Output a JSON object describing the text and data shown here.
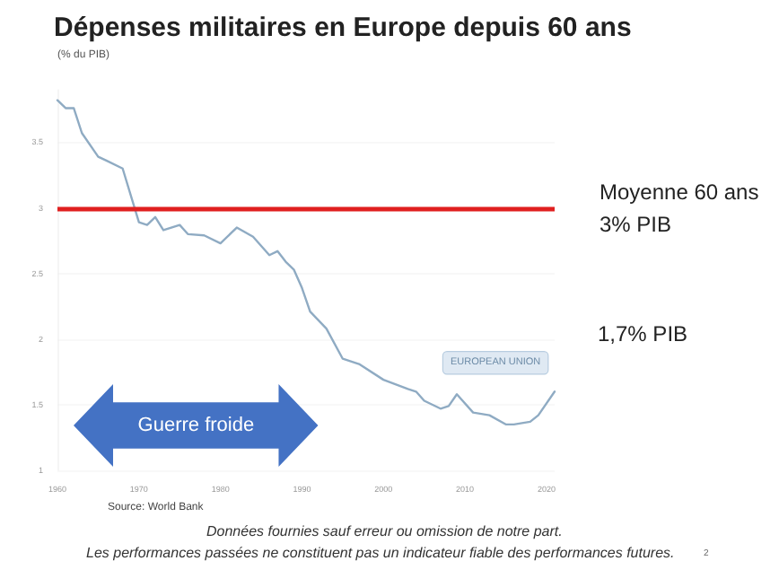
{
  "chart_data": {
    "type": "line",
    "title": "Dépenses militaires en Europe depuis 60 ans",
    "subtitle": "(% du PIB)",
    "x": [
      1960,
      1961,
      1962,
      1963,
      1965,
      1966,
      1968,
      1970,
      1971,
      1972,
      1973,
      1975,
      1976,
      1978,
      1980,
      1982,
      1984,
      1986,
      1987,
      1988,
      1989,
      1990,
      1991,
      1993,
      1995,
      1997,
      2000,
      2003,
      2004,
      2005,
      2007,
      2008,
      2009,
      2011,
      2013,
      2015,
      2016,
      2018,
      2019,
      2021
    ],
    "series": [
      {
        "name": "EUROPEAN UNION",
        "color": "#8fabc3",
        "values": [
          3.82,
          3.76,
          3.76,
          3.57,
          3.39,
          3.36,
          3.3,
          2.89,
          2.87,
          2.93,
          2.83,
          2.87,
          2.8,
          2.79,
          2.73,
          2.85,
          2.78,
          2.64,
          2.67,
          2.59,
          2.53,
          2.39,
          2.21,
          2.08,
          1.85,
          1.81,
          1.69,
          1.62,
          1.6,
          1.53,
          1.47,
          1.49,
          1.58,
          1.44,
          1.42,
          1.35,
          1.35,
          1.37,
          1.42,
          1.6
        ]
      }
    ],
    "xlim": [
      1960,
      2021
    ],
    "xticks": [
      1960,
      1970,
      1980,
      1990,
      2000,
      2010,
      2020
    ],
    "ylim": [
      1,
      3.9
    ],
    "yticks": [
      1,
      1.5,
      2,
      2.5,
      3,
      3.5
    ],
    "grid": "y",
    "legend": false,
    "marker": "none",
    "line_style": "solid",
    "ref_lines": [
      {
        "axis": "y",
        "value": 3,
        "label": "Moyenne 60 ans\n3% PIB",
        "color": "#e02020"
      }
    ],
    "annotations": [
      "1,7% PIB",
      "Guerre froide",
      "Source: World Bank",
      "Données fournies sauf erreur ou omission de notre part.",
      "Les performances passées ne constituent pas un indicateur fiable des performances futures.",
      "2"
    ]
  }
}
